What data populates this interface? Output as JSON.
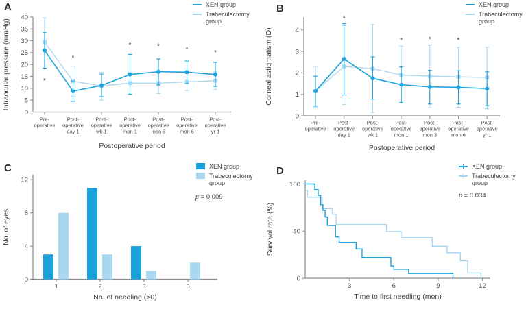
{
  "colors": {
    "xen": "#1BA2DC",
    "trab": "#A9D6F0",
    "axis": "#8B8D8F",
    "text": "#3F4142",
    "tick_text": "#4A4C4E",
    "asterisk": "#3A3A3A",
    "background": "#FFFFFF"
  },
  "legend": {
    "xen": "XEN group",
    "trab": "Trabeculectomy group"
  },
  "panels": {
    "A": {
      "letter": "A"
    },
    "B": {
      "letter": "B"
    },
    "C": {
      "letter": "C",
      "p_var": "p",
      "p_rest": " = 0.009"
    },
    "D": {
      "letter": "D",
      "p_var": "p",
      "p_rest": " = 0.034"
    }
  },
  "chart_data": [
    {
      "panel": "A",
      "type": "line",
      "title": "",
      "ylabel": "Intraocular pressure (mmHg)",
      "xlabel": "Postoperative period",
      "ylim": [
        0,
        40
      ],
      "yticks": [
        0,
        5,
        10,
        15,
        20,
        25,
        30,
        35,
        40
      ],
      "categories": [
        [
          "Pre-",
          "operative"
        ],
        [
          "Post-",
          "operative",
          "day 1"
        ],
        [
          "Post-",
          "operative",
          "wk 1"
        ],
        [
          "Post-",
          "operative",
          "mon 1"
        ],
        [
          "Post-",
          "operative",
          "mon 3"
        ],
        [
          "Post-",
          "operative",
          "mon 6"
        ],
        [
          "Post-",
          "operative",
          "yr 1"
        ]
      ],
      "series": [
        {
          "name": "XEN group",
          "color": "xen",
          "marker": "circle",
          "values": [
            26,
            8.8,
            11.2,
            15.8,
            17,
            16.8,
            15.8
          ],
          "err_low": [
            18.5,
            4.5,
            6.5,
            7.5,
            11.4,
            12,
            10.8
          ],
          "err_high": [
            33.6,
            13.1,
            16,
            24.3,
            22.4,
            21.5,
            21
          ]
        },
        {
          "name": "Trabeculectomy group",
          "color": "trab",
          "marker": "square",
          "values": [
            29.5,
            13,
            11,
            12.2,
            12.2,
            12.7,
            13.2
          ],
          "err_low": [
            19.4,
            6.7,
            5,
            7.4,
            7.8,
            9,
            9.4
          ],
          "err_high": [
            39.6,
            19.3,
            16.7,
            16.6,
            16.4,
            16.2,
            16.9
          ]
        }
      ],
      "asterisks": [
        [
          0,
          13.5
        ],
        [
          1,
          23
        ],
        [
          3,
          28.5
        ],
        [
          4,
          28
        ],
        [
          5,
          26.5
        ],
        [
          6,
          25.3
        ]
      ],
      "legend_position": "top-right",
      "grid": false
    },
    {
      "panel": "B",
      "type": "line",
      "title": "",
      "ylabel": "Corneal astigmatism (D)",
      "xlabel": "Postoperative period",
      "ylim": [
        0,
        4.6
      ],
      "yticks": [
        0,
        1,
        2,
        3,
        4
      ],
      "categories": [
        [
          "Pre-",
          "operative"
        ],
        [
          "Post-",
          "operative",
          "day 1"
        ],
        [
          "Post-",
          "operative",
          "wk 1"
        ],
        [
          "Post-",
          "operative",
          "mon 1"
        ],
        [
          "Post-",
          "operative",
          "mon 3"
        ],
        [
          "Post-",
          "operative",
          "mon 6"
        ],
        [
          "Post-",
          "operative",
          "yr 1"
        ]
      ],
      "series": [
        {
          "name": "XEN group",
          "color": "xen",
          "marker": "circle",
          "values": [
            1.15,
            2.65,
            1.75,
            1.45,
            1.35,
            1.33,
            1.27
          ],
          "err_low": [
            0.45,
            0.97,
            0.78,
            0.62,
            0.55,
            0.55,
            0.47
          ],
          "err_high": [
            1.85,
            4.3,
            2.75,
            2.28,
            2.12,
            2.1,
            2.05
          ]
        },
        {
          "name": "Trabeculectomy group",
          "color": "trab",
          "marker": "square",
          "values": [
            1.15,
            2.3,
            2.2,
            1.9,
            1.85,
            1.82,
            1.78
          ],
          "err_low": [
            0.37,
            0.53,
            0.15,
            0.6,
            0.38,
            0.4,
            0.33
          ],
          "err_high": [
            2.3,
            4.2,
            4.25,
            3.25,
            3.3,
            3.2,
            3.2
          ]
        }
      ],
      "asterisks": [
        [
          1,
          4.55
        ],
        [
          3,
          3.55
        ],
        [
          4,
          3.6
        ],
        [
          5,
          3.55
        ]
      ],
      "legend_position": "top-right",
      "grid": false
    },
    {
      "panel": "C",
      "type": "bar",
      "title": "",
      "ylabel": "No. of eyes",
      "xlabel": "No. of needling (>0)",
      "ylim": [
        0,
        12.6
      ],
      "yticks": [
        0,
        4,
        8,
        12
      ],
      "categories": [
        "1",
        "2",
        "3",
        "6"
      ],
      "series": [
        {
          "name": "XEN group",
          "color": "xen",
          "values": [
            3,
            11,
            4,
            0
          ]
        },
        {
          "name": "Trabeculectomy group",
          "color": "trab",
          "values": [
            8,
            3,
            1,
            2
          ]
        }
      ],
      "p_label": "p = 0.009",
      "legend_position": "top-right",
      "grid": false
    },
    {
      "panel": "D",
      "type": "step",
      "title": "",
      "ylabel": "Survival rate (%)",
      "xlabel": "Time to first needling (mon)",
      "ylim": [
        0,
        104
      ],
      "xlim": [
        0,
        12.5
      ],
      "yticks": [
        0,
        50,
        100
      ],
      "xticks": [
        3,
        6,
        9,
        12
      ],
      "series": [
        {
          "name": "XEN group",
          "color": "xen",
          "points": [
            [
              0,
              100
            ],
            [
              0.65,
              100
            ],
            [
              0.65,
              94
            ],
            [
              0.88,
              94
            ],
            [
              0.88,
              88
            ],
            [
              1.05,
              88
            ],
            [
              1.05,
              78
            ],
            [
              1.2,
              78
            ],
            [
              1.2,
              72
            ],
            [
              1.35,
              72
            ],
            [
              1.35,
              65
            ],
            [
              1.5,
              65
            ],
            [
              1.5,
              56
            ],
            [
              2.05,
              56
            ],
            [
              2.05,
              44
            ],
            [
              2.3,
              44
            ],
            [
              2.3,
              38
            ],
            [
              3.45,
              38
            ],
            [
              3.45,
              31
            ],
            [
              3.85,
              31
            ],
            [
              3.85,
              22
            ],
            [
              5.8,
              22
            ],
            [
              5.8,
              13
            ],
            [
              6,
              13
            ],
            [
              6,
              9.5
            ],
            [
              7,
              9.5
            ],
            [
              7,
              5
            ],
            [
              10,
              5
            ],
            [
              10,
              0
            ]
          ]
        },
        {
          "name": "Trabeculectomy group",
          "color": "trab",
          "points": [
            [
              0,
              93
            ],
            [
              0.15,
              93
            ],
            [
              0.15,
              86
            ],
            [
              1.15,
              86
            ],
            [
              1.15,
              74
            ],
            [
              1.85,
              74
            ],
            [
              1.85,
              68
            ],
            [
              2.1,
              68
            ],
            [
              2.1,
              57
            ],
            [
              5.5,
              57
            ],
            [
              5.5,
              49.5
            ],
            [
              6.5,
              49.5
            ],
            [
              6.5,
              43
            ],
            [
              8.6,
              43
            ],
            [
              8.6,
              34
            ],
            [
              9.6,
              34
            ],
            [
              9.6,
              27
            ],
            [
              10.5,
              27
            ],
            [
              10.5,
              18.5
            ],
            [
              11,
              18.5
            ],
            [
              11,
              5.5
            ],
            [
              11.9,
              5.5
            ],
            [
              11.9,
              1
            ]
          ]
        }
      ],
      "p_label": "p = 0.034",
      "legend_position": "top-right",
      "grid": false
    }
  ]
}
